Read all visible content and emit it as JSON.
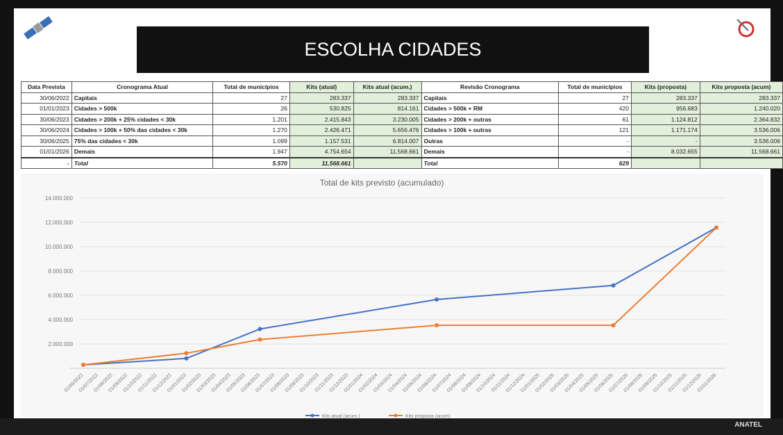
{
  "header": {
    "title": "ESCOLHA CIDADES"
  },
  "table": {
    "headers": [
      "Data Prevista",
      "Cronograma Atual",
      "Total de municípios",
      "Kits (atual)",
      "Kits atual (acum.)",
      "Revisão Cronograma",
      "Total de municípios",
      "Kits (proposta)",
      "Kits proposta (acum)"
    ],
    "rows": [
      [
        "30/06/2022",
        "Capitais",
        "27",
        "283.337",
        "283.337",
        "Capitais",
        "27",
        "283.337",
        "283.337"
      ],
      [
        "01/01/2023",
        "Cidades > 500k",
        "26",
        "530.825",
        "814.161",
        "Cidades > 500k + RM",
        "420",
        "956.683",
        "1.240.020"
      ],
      [
        "30/06/2023",
        "Cidades > 200k + 25% cidades < 30k",
        "1.201",
        "2.415.843",
        "3.230.005",
        "Cidades > 200k + outras",
        "61",
        "1.124.812",
        "2.364.832"
      ],
      [
        "30/06/2024",
        "Cidades > 100k + 50% das cidades < 30k",
        "1.270",
        "2.426.471",
        "5.656.476",
        "Cidades > 100k + outras",
        "121",
        "1.171.174",
        "3.536.006"
      ],
      [
        "30/06/2025",
        "75% das cidades < 30k",
        "1.099",
        "1.157.531",
        "6.814.007",
        "Outras",
        "-",
        "-",
        "3.536.006"
      ],
      [
        "01/01/2026",
        "Demais",
        "1.947",
        "4.754.654",
        "11.568.661",
        "Demais",
        "-",
        "8.032.655",
        "11.568.661"
      ],
      [
        "-",
        "Total",
        "5.570",
        "11.568.661",
        null,
        "Total",
        "629",
        null,
        null
      ]
    ]
  },
  "chart_data": {
    "type": "line",
    "title": "Total de kits previsto (acumulado)",
    "categories": [
      "01/06/2022",
      "01/07/2022",
      "01/08/2022",
      "01/09/2022",
      "01/10/2022",
      "01/11/2022",
      "01/12/2022",
      "01/01/2023",
      "01/02/2023",
      "01/03/2023",
      "01/04/2023",
      "01/05/2023",
      "01/06/2023",
      "01/07/2023",
      "01/08/2023",
      "01/09/2023",
      "01/10/2023",
      "01/11/2023",
      "01/12/2023",
      "01/01/2024",
      "01/02/2024",
      "01/03/2024",
      "01/04/2024",
      "01/05/2024",
      "01/06/2024",
      "01/07/2024",
      "01/08/2024",
      "01/09/2024",
      "01/10/2024",
      "01/11/2024",
      "01/12/2024",
      "01/01/2025",
      "01/02/2025",
      "01/03/2025",
      "01/04/2025",
      "01/05/2025",
      "01/06/2025",
      "01/07/2025",
      "01/08/2025",
      "01/09/2025",
      "01/10/2025",
      "01/11/2025",
      "01/12/2025",
      "01/01/2026"
    ],
    "series": [
      {
        "name": "Kits atual (acum.)",
        "color": "#4472c4",
        "x": [
          "01/06/2022",
          "01/01/2023",
          "01/06/2023",
          "01/06/2024",
          "01/06/2025",
          "01/01/2026"
        ],
        "values": [
          283337,
          814161,
          3230005,
          5656476,
          6814007,
          11568661
        ]
      },
      {
        "name": "Kits proposta (acum)",
        "color": "#ed7d31",
        "x": [
          "01/06/2022",
          "01/01/2023",
          "01/06/2023",
          "01/06/2024",
          "01/06/2025",
          "01/01/2026"
        ],
        "values": [
          283337,
          1240020,
          2364832,
          3536006,
          3536006,
          11568661
        ]
      }
    ],
    "ylim": [
      0,
      14000000
    ],
    "yticks": [
      {
        "value": 2000000,
        "label": "2.000.000"
      },
      {
        "value": 4000000,
        "label": "4.000.000"
      },
      {
        "value": 6000000,
        "label": "6.000.000"
      },
      {
        "value": 8000000,
        "label": "8.000.000"
      },
      {
        "value": 10000000,
        "label": "10.000.000"
      },
      {
        "value": 12000000,
        "label": "12.000.000"
      },
      {
        "value": 14000000,
        "label": "14.000.000"
      }
    ],
    "grid": true,
    "legend": "bottom"
  },
  "footer": {
    "logo": "ANATEL"
  }
}
